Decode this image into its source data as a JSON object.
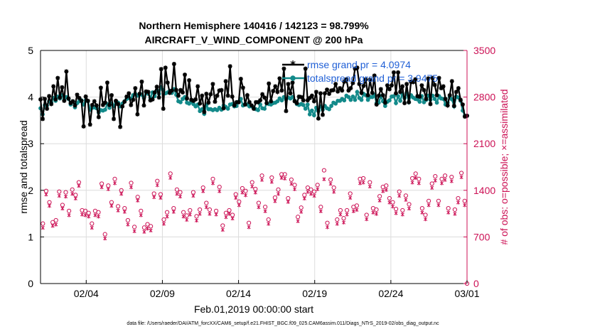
{
  "chart_data": {
    "type": "line",
    "title_line1": "Northern Hemisphere 140416 / 142123 = 98.799%",
    "title_line2": "AIRCRAFT_V_WIND_COMPONENT @ 200 hPa",
    "xlabel": "Feb.01,2019 00:00:00 start",
    "ylabel_left": "rmse and totalspread",
    "ylabel_right": "# of obs: o=possible; ×=assimilated",
    "footnote": "data file: /Users/raeder/DAI/ATM_forcXX/CAM6_setup/f.e21.FHIST_BGC.f09_025.CAM6assim.011/Diags_NTrS_2019-02/obs_diag_output.nc",
    "xlim": [
      0,
      28
    ],
    "x_ticks": [
      3,
      8,
      13,
      18,
      23,
      28
    ],
    "x_tick_labels": [
      "02/04",
      "02/09",
      "02/14",
      "02/19",
      "02/24",
      "03/01"
    ],
    "ylim_left": [
      0,
      5
    ],
    "y_ticks_left": [
      "0",
      "1",
      "2",
      "3",
      "4",
      "5"
    ],
    "ylim_right": [
      0,
      3500
    ],
    "y_ticks_right": [
      "0",
      "700",
      "1400",
      "2100",
      "2800",
      "3500"
    ],
    "colors": {
      "rmse": "#000000",
      "spread": "#138a8a",
      "obs": "#cc1155",
      "legend_text": "#1f5fd6",
      "grid": "#dcdcdc"
    },
    "series": [
      {
        "name": "rmse grand pr = 4.0974",
        "axis": "left",
        "values": [
          3.95,
          3.53,
          3.96,
          3.75,
          4.02,
          3.85,
          4.23,
          3.95,
          4.41,
          3.99,
          4.21,
          3.92,
          4.55,
          3.97,
          3.87,
          3.91,
          3.82,
          4.05,
          3.98,
          3.92,
          3.37,
          4.01,
          3.92,
          3.41,
          3.83,
          3.91,
          3.82,
          3.57,
          4.2,
          3.83,
          3.88,
          4.31,
          3.83,
          4.04,
          3.53,
          3.92,
          3.85,
          3.36,
          3.8,
          3.9,
          4.01,
          4.08,
          3.83,
          3.94,
          4.19,
          3.63,
          4.07,
          4.33,
          3.82,
          4.12,
          4.11,
          3.93,
          3.95,
          4.1,
          4.22,
          3.99,
          4.6,
          3.75,
          4.63,
          4.31,
          4.09,
          4.14,
          4.71,
          4.15,
          4.03,
          4.15,
          4.1,
          4.48,
          3.97,
          4.36,
          3.94,
          3.92,
          3.95,
          4.23,
          3.86,
          4.03,
          3.68,
          4.07,
          3.88,
          4.06,
          4.28,
          3.9,
          4.03,
          4.14,
          4.15,
          3.76,
          4.34,
          4.03,
          4.66,
          4.01,
          3.82,
          3.89,
          3.89,
          4.39,
          4.2,
          3.84,
          4.04,
          3.89,
          3.82,
          3.75,
          3.89,
          3.89,
          3.93,
          4.06,
          3.99,
          3.87,
          4.29,
          3.91,
          4.13,
          4.23,
          4.11,
          4.4,
          4.14,
          4.61,
          3.7,
          4.28,
          4.08,
          4.31,
          3.91,
          3.87,
          4.01,
          4.0,
          3.93,
          4.61,
          3.93,
          3.98,
          4.03,
          3.91,
          4.11,
          3.54,
          4.08,
          3.62,
          4.08,
          4.16,
          4.07,
          4.14,
          4.15,
          4.28,
          4.12,
          4.19,
          4.14,
          4.33,
          4.38,
          4.14,
          4.19,
          4.3,
          4.61,
          4.63,
          4.28,
          4.09,
          4.24,
          4.38,
          4.04,
          4.37,
          4.09,
          4.46,
          3.84,
          4.03,
          4.17,
          4.04,
          3.88,
          4.25,
          4.17,
          4.25,
          4.53,
          4.08,
          4.53,
          4.11,
          4.23,
          3.87,
          4.28,
          3.89,
          4.33,
          4.32,
          4.38,
          4.02,
          4.01,
          4.25,
          4.15,
          3.96,
          4.4,
          3.85,
          4.41,
          4.26,
          4.04,
          4.41,
          4.19,
          4.23,
          3.96,
          3.82,
          4.04,
          4.34,
          3.81,
          4.11,
          4.19,
          3.94,
          3.84,
          3.58,
          3.6
        ],
        "marker": "*"
      },
      {
        "name": "totalspread grand pr = 3.9475",
        "axis": "left",
        "values": [
          3.76,
          3.63,
          3.83,
          3.82,
          3.91,
          3.89,
          3.98,
          3.92,
          4.01,
          3.97,
          4.04,
          3.96,
          4.0,
          3.96,
          3.84,
          3.91,
          3.78,
          3.87,
          3.91,
          3.93,
          3.84,
          3.93,
          3.91,
          3.73,
          3.77,
          3.78,
          3.76,
          3.67,
          3.72,
          3.71,
          3.73,
          3.85,
          3.77,
          3.86,
          3.81,
          3.9,
          3.88,
          3.8,
          3.86,
          3.91,
          3.96,
          3.98,
          3.97,
          4.04,
          4.07,
          4.03,
          4.06,
          4.05,
          3.98,
          4.1,
          4.07,
          3.99,
          4.1,
          4.02,
          4.15,
          4.07,
          4.21,
          4.15,
          4.08,
          4.1,
          4.13,
          4.09,
          4.17,
          4.05,
          3.91,
          3.89,
          3.96,
          4.0,
          3.88,
          3.86,
          3.9,
          3.85,
          3.8,
          3.84,
          3.7,
          3.74,
          3.64,
          3.83,
          3.74,
          3.74,
          3.72,
          3.74,
          3.72,
          3.77,
          3.73,
          3.82,
          3.79,
          3.75,
          3.84,
          3.85,
          3.8,
          3.81,
          3.9,
          3.96,
          3.82,
          3.85,
          3.84,
          3.8,
          3.8,
          3.77,
          3.74,
          3.72,
          3.84,
          3.76,
          3.75,
          3.87,
          3.85,
          3.84,
          3.87,
          3.88,
          3.91,
          3.97,
          3.93,
          4.0,
          3.95,
          3.99,
          3.97,
          4.0,
          3.92,
          3.85,
          3.83,
          3.85,
          3.83,
          3.75,
          3.84,
          3.63,
          3.71,
          3.61,
          3.77,
          3.7,
          3.8,
          3.73,
          3.81,
          3.76,
          3.74,
          3.81,
          3.88,
          3.86,
          3.92,
          3.92,
          3.96,
          3.93,
          4.03,
          4.0,
          3.94,
          4.01,
          3.94,
          4.11,
          3.98,
          3.94,
          4.07,
          4.04,
          3.94,
          4.0,
          4.0,
          4.05,
          3.87,
          3.88,
          4.02,
          3.91,
          3.81,
          3.9,
          3.93,
          4.01,
          4.02,
          3.87,
          4.02,
          3.92,
          4.06,
          3.98,
          4.09,
          3.89,
          4.04,
          3.99,
          3.96,
          3.95,
          3.9,
          4.02,
          3.89,
          3.94,
          4.03,
          3.94,
          4.03,
          3.96,
          3.88,
          4.02,
          3.97,
          3.96,
          3.84,
          3.88,
          4.0,
          3.95,
          3.8,
          4.01,
          3.99,
          3.92,
          3.71,
          3.6,
          3.6
        ],
        "marker": "o"
      },
      {
        "name": "# of obs possible",
        "axis": "right",
        "marker": "o",
        "values": [
          900,
          1390,
          1220,
          920,
          950,
          1380,
          1180,
          1370,
          1090,
          1410,
          1330,
          1520,
          1100,
          1090,
          1060,
          900,
          1090,
          1070,
          1500,
          740,
          1470,
          1220,
          1570,
          1160,
          1400,
          1130,
          950,
          1510,
          850,
          1300,
          1090,
          840,
          890,
          860,
          1350,
          1540,
          1340,
          960,
          1070,
          1650,
          1130,
          1410,
          1370,
          1070,
          1020,
          1100,
          1370,
          1010,
          1110,
          1440,
          1210,
          1110,
          1570,
          1090,
          1450,
          870,
          1060,
          1100,
          1030,
          1340,
          1230,
          1430,
          1390,
          910,
          1520,
          1420,
          1210,
          1620,
          1150,
          960,
          1590,
          1290,
          1410,
          1640,
          1640,
          1280,
          1560,
          1480,
          1000,
          1140,
          1330,
          1440,
          1410,
          1380,
          1480,
          1150,
          1700,
          910,
          1560,
          1440,
          960,
          1100,
          980,
          1100,
          1350,
          1150,
          1170,
          1570,
          1580,
          1030,
          1520,
          1130,
          1110,
          1310,
          1450,
          1470,
          1280,
          1220,
          1120,
          1380,
          1100,
          1320,
          1190,
          1580,
          1650,
          1570,
          1130,
          1030,
          1240,
          1500,
          1610,
          1240,
          1570,
          1620,
          1130,
          1600,
          1110,
          1280,
          1660,
          1240
        ]
      },
      {
        "name": "# of obs assimilated",
        "axis": "right",
        "marker": "x",
        "values": [
          890,
          1390,
          1220,
          920,
          940,
          1370,
          1180,
          1360,
          1080,
          1400,
          1330,
          1520,
          1090,
          1080,
          1060,
          890,
          1080,
          1060,
          1500,
          730,
          1470,
          1220,
          1560,
          1150,
          1400,
          1130,
          940,
          1500,
          840,
          1300,
          1080,
          830,
          880,
          850,
          1350,
          1530,
          1340,
          950,
          1060,
          1640,
          1130,
          1400,
          1360,
          1060,
          1010,
          1090,
          1370,
          1000,
          1100,
          1440,
          1200,
          1100,
          1560,
          1090,
          1440,
          860,
          1050,
          1100,
          1030,
          1340,
          1230,
          1420,
          1380,
          900,
          1510,
          1420,
          1200,
          1610,
          1140,
          950,
          1580,
          1290,
          1400,
          1640,
          1630,
          1280,
          1550,
          1470,
          990,
          1130,
          1330,
          1430,
          1400,
          1370,
          1470,
          1140,
          1620,
          900,
          1550,
          1430,
          950,
          1090,
          970,
          1090,
          1340,
          1140,
          1160,
          1560,
          1570,
          1020,
          1510,
          1120,
          1100,
          1300,
          1440,
          1460,
          1270,
          1210,
          1110,
          1370,
          1090,
          1310,
          1180,
          1570,
          1640,
          1560,
          1120,
          1020,
          1230,
          1490,
          1600,
          1230,
          1560,
          1610,
          1120,
          1590,
          1100,
          1270,
          1650,
          1230
        ]
      }
    ],
    "legend": [
      {
        "label": "rmse grand pr = 4.0974",
        "marker": "*"
      },
      {
        "label": "totalspread grand pr = 3.9475",
        "marker": "o"
      }
    ],
    "legend_position": "top-right"
  }
}
